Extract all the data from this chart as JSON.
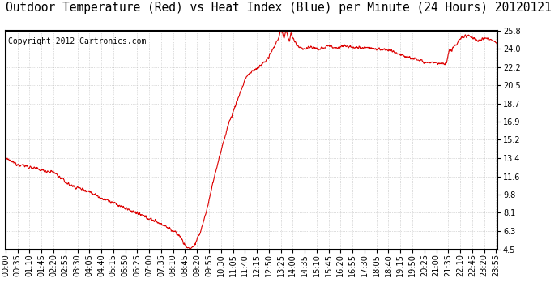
{
  "title": "Outdoor Temperature (Red) vs Heat Index (Blue) per Minute (24 Hours) 20120121",
  "copyright_text": "Copyright 2012 Cartronics.com",
  "yticks": [
    4.5,
    6.3,
    8.1,
    9.8,
    11.6,
    13.4,
    15.2,
    16.9,
    18.7,
    20.5,
    22.2,
    24.0,
    25.8
  ],
  "ymin": 4.5,
  "ymax": 25.8,
  "line_color": "#dd0000",
  "background_color": "#ffffff",
  "grid_color": "#bbbbbb",
  "title_fontsize": 10.5,
  "copyright_fontsize": 7,
  "tick_fontsize": 7,
  "xtick_step": 35,
  "total_minutes": 1440
}
